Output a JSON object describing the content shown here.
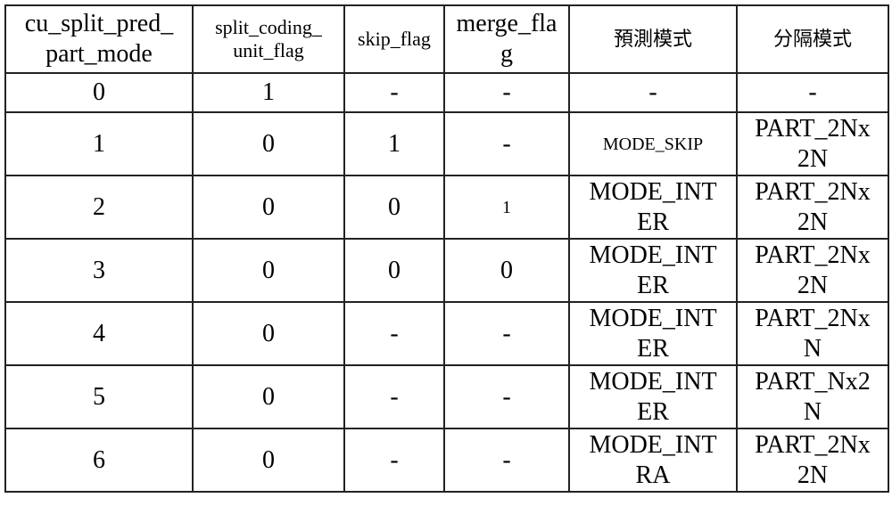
{
  "headers": [
    "cu_split_pred_\npart_mode",
    "split_coding_\nunit_flag",
    "skip_flag",
    "merge_fla\ng",
    "預測模式",
    "分隔模式"
  ],
  "rows": [
    [
      "0",
      "1",
      "-",
      "-",
      "-",
      "-"
    ],
    [
      "1",
      "0",
      "1",
      "-",
      "MODE_SKIP",
      "PART_2Nx\n2N"
    ],
    [
      "2",
      "0",
      "0",
      "1",
      "MODE_INT\nER",
      "PART_2Nx\n2N"
    ],
    [
      "3",
      "0",
      "0",
      "0",
      "MODE_INT\nER",
      "PART_2Nx\n2N"
    ],
    [
      "4",
      "0",
      "-",
      "-",
      "MODE_INT\nER",
      "PART_2Nx\nN"
    ],
    [
      "5",
      "0",
      "-",
      "-",
      "MODE_INT\nER",
      "PART_Nx2\nN"
    ],
    [
      "6",
      "0",
      "-",
      "-",
      "MODE_INT\nRA",
      "PART_2Nx\n2N"
    ]
  ]
}
